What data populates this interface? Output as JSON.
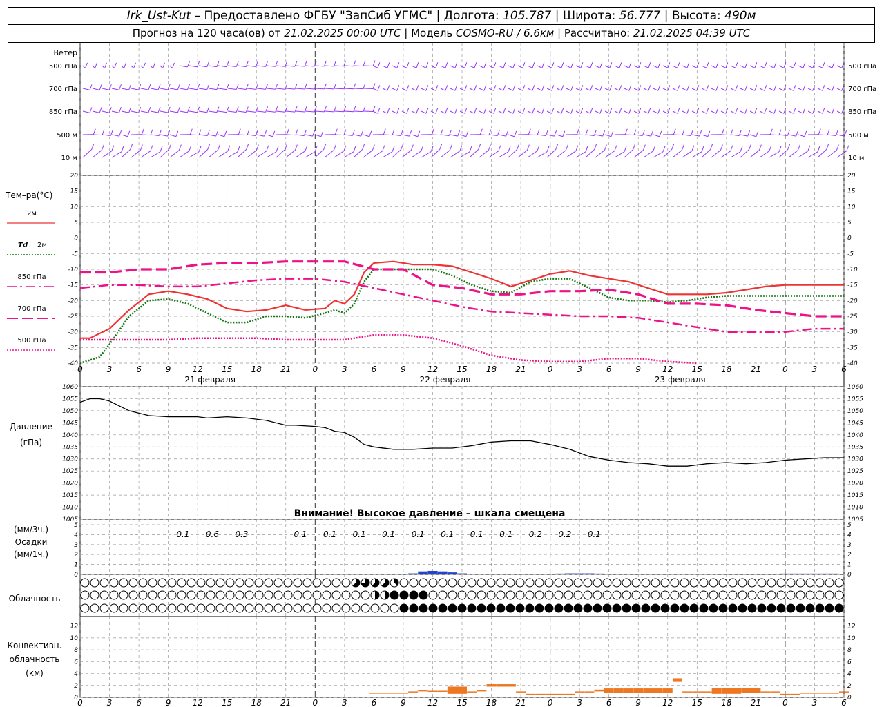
{
  "header": {
    "station": "Irk_Ust-Kut",
    "provider": "– Предоставлено ФГБУ \"ЗапСиб УГМС\"",
    "lon_label": "Долгота:",
    "lon": "105.787",
    "lat_label": "Широта:",
    "lat": "56.777",
    "alt_label": "Высота:",
    "alt": "490м",
    "sep": "|",
    "forecast_label": "Прогноз на 120 часа(ов) от",
    "start": "21.02.2025 00:00 UTC",
    "model_label": "Модель",
    "model": "COSMO-RU / 6.6км",
    "calc_label": "Рассчитано:",
    "calc": "21.02.2025 04:39 UTC"
  },
  "colors": {
    "wind": "#9933ff",
    "t2m": "#ee3333",
    "td2m": "#117711",
    "t_levels": "#ee1188",
    "zero": "#3355ff",
    "precip": "#2244cc",
    "conv": "#ee7722",
    "grid": "#999999"
  },
  "x_ticks": [
    "0",
    "3",
    "6",
    "9",
    "12",
    "15",
    "18",
    "21",
    "0",
    "3",
    "6",
    "9",
    "12",
    "15",
    "18",
    "21",
    "0",
    "3",
    "6",
    "9",
    "12",
    "15",
    "18",
    "21",
    "0",
    "3",
    "6"
  ],
  "days": [
    "21 февраля",
    "22 февраля",
    "23 февраля"
  ],
  "wind_panel": {
    "title": "Ветер",
    "levels": [
      "500 гПа",
      "700 гПа",
      "850 гПа",
      "500 м",
      "10  м"
    ]
  },
  "temp_panel": {
    "title": "Тем–ра(°С)",
    "legend": [
      {
        "label": "2м"
      },
      {
        "label_it": "Td",
        "label": "2м"
      },
      {
        "label": "850 гПа"
      },
      {
        "label": "700 гПа"
      },
      {
        "label": "500 гПа"
      }
    ],
    "y_ticks": [
      "20",
      "15",
      "10",
      "5",
      "0",
      "-5",
      "-10",
      "-15",
      "-20",
      "-25",
      "-30",
      "-35",
      "-40"
    ]
  },
  "pressure_panel": {
    "title": "Давление",
    "unit": "(гПа)",
    "y_ticks": [
      "1060",
      "1055",
      "1050",
      "1045",
      "1040",
      "1035",
      "1030",
      "1025",
      "1020",
      "1015",
      "1010",
      "1005"
    ],
    "warning": "Внимание! Высокое давление – шкала смещена"
  },
  "precip_panel": {
    "unit3": "(мм/3ч.)",
    "title": "Осадки",
    "unit1": "(мм/1ч.)",
    "y_ticks": [
      "5",
      "4",
      "3",
      "2",
      "1",
      "0"
    ],
    "labels": [
      {
        "h": 12,
        "v": "0.1"
      },
      {
        "h": 15,
        "v": "0.6"
      },
      {
        "h": 18,
        "v": "0.3"
      },
      {
        "h": 24,
        "v": "0.1"
      },
      {
        "h": 27,
        "v": "0.1"
      },
      {
        "h": 30,
        "v": "0.1"
      },
      {
        "h": 33,
        "v": "0.1"
      },
      {
        "h": 36,
        "v": "0.1"
      },
      {
        "h": 39,
        "v": "0.1"
      },
      {
        "h": 42,
        "v": "0.1"
      },
      {
        "h": 45,
        "v": "0.1"
      },
      {
        "h": 48,
        "v": "0.2"
      },
      {
        "h": 51,
        "v": "0.2"
      },
      {
        "h": 54,
        "v": "0.1"
      }
    ]
  },
  "cloud_panel": {
    "title": "Облачность"
  },
  "conv_panel": {
    "title1": "Конвективн.",
    "title2": "облачность",
    "unit": "(км)",
    "y_ticks": [
      "12",
      "10",
      "8",
      "6",
      "4",
      "2",
      "0"
    ]
  },
  "chart_data": {
    "type": "line",
    "x_unit": "hours since 21.02.2025 00:00 UTC",
    "x_range": [
      0,
      78
    ],
    "temperature": {
      "ylim": [
        -40,
        20
      ],
      "series": [
        {
          "name": "2м",
          "style": "solid",
          "color": "#ee3333",
          "x": [
            0,
            1,
            3,
            5,
            7,
            9,
            11,
            13,
            15,
            17,
            19,
            21,
            23,
            25,
            26,
            27,
            28,
            29,
            30,
            32,
            34,
            36,
            38,
            40,
            42,
            44,
            46,
            48,
            50,
            52,
            54,
            56,
            58,
            60,
            62,
            64,
            66,
            68,
            70,
            72,
            74,
            76,
            78
          ],
          "y": [
            -32,
            -32,
            -29,
            -23,
            -18,
            -17,
            -18,
            -19.5,
            -22.5,
            -23.5,
            -23,
            -21.5,
            -23,
            -22.5,
            -20,
            -21,
            -18,
            -11,
            -8,
            -7.5,
            -8.5,
            -8.5,
            -9,
            -11,
            -13,
            -15.5,
            -13.5,
            -11.5,
            -10.5,
            -12,
            -13,
            -14,
            -16,
            -18,
            -18,
            -18,
            -17.5,
            -16.5,
            -15.5,
            -15,
            -15,
            -15,
            -15
          ]
        },
        {
          "name": "Td 2м",
          "style": "dotted",
          "color": "#117711",
          "x": [
            0,
            1,
            2,
            3,
            5,
            7,
            9,
            11,
            13,
            15,
            17,
            19,
            21,
            23,
            25,
            26,
            27,
            28,
            29,
            30,
            32,
            34,
            36,
            38,
            40,
            42,
            44,
            46,
            48,
            50,
            52,
            54,
            56,
            58,
            60,
            62,
            64,
            66,
            68,
            70,
            72,
            74,
            76,
            78
          ],
          "y": [
            -40,
            -39,
            -38,
            -34,
            -25,
            -20,
            -19.5,
            -21,
            -24,
            -27,
            -27,
            -25,
            -25,
            -25.5,
            -24,
            -23,
            -24,
            -21,
            -14,
            -10,
            -10,
            -10,
            -10,
            -12,
            -15,
            -17,
            -17.5,
            -14,
            -13,
            -13,
            -16,
            -19,
            -20,
            -20,
            -20.5,
            -20,
            -19,
            -18.5,
            -18.5,
            -18.5,
            -18.5,
            -18.5,
            -18.5,
            -18.5
          ]
        },
        {
          "name": "850 гПа",
          "style": "dashdot",
          "color": "#ee1188",
          "x": [
            0,
            3,
            6,
            9,
            12,
            15,
            18,
            21,
            24,
            27,
            30,
            33,
            36,
            39,
            42,
            45,
            48,
            51,
            54,
            57,
            60,
            63,
            66,
            69,
            72,
            75,
            78
          ],
          "y": [
            -16,
            -15,
            -15,
            -15.5,
            -15.5,
            -14.5,
            -13.5,
            -13,
            -13,
            -14,
            -16,
            -18,
            -20,
            -22,
            -23.5,
            -24,
            -24.5,
            -25,
            -25,
            -25.5,
            -27,
            -28.5,
            -30,
            -30,
            -30,
            -29,
            -29
          ]
        },
        {
          "name": "700 гПа",
          "style": "dashed",
          "color": "#ee1188",
          "x": [
            0,
            3,
            6,
            9,
            12,
            15,
            18,
            21,
            24,
            27,
            30,
            33,
            36,
            39,
            42,
            45,
            48,
            51,
            54,
            57,
            60,
            63,
            66,
            69,
            72,
            75,
            78
          ],
          "y": [
            -11,
            -11,
            -10,
            -10,
            -8.5,
            -8,
            -8,
            -7.5,
            -7.5,
            -7.5,
            -10,
            -10,
            -15,
            -16,
            -18,
            -18,
            -17,
            -17,
            -16.5,
            -18,
            -21,
            -21,
            -21.5,
            -23,
            -24,
            -25,
            -25
          ]
        },
        {
          "name": "500 гПа",
          "style": "dotted",
          "color": "#ee1188",
          "x": [
            0,
            3,
            6,
            9,
            12,
            15,
            18,
            21,
            24,
            27,
            30,
            33,
            36,
            39,
            42,
            45,
            48,
            51,
            54,
            57,
            60,
            63
          ],
          "y": [
            -32.5,
            -32.5,
            -32.5,
            -32.5,
            -32,
            -32,
            -32,
            -32.5,
            -32.5,
            -32.5,
            -31,
            -31,
            -32,
            -34.5,
            -37.5,
            -39,
            -39.5,
            -39.5,
            -38.5,
            -38.5,
            -39.5,
            -40
          ]
        }
      ]
    },
    "pressure": {
      "ylim": [
        1005,
        1060
      ],
      "x": [
        0,
        1,
        2,
        3,
        5,
        7,
        9,
        11,
        12,
        13,
        15,
        17,
        19,
        21,
        22,
        24,
        25,
        26,
        27,
        28,
        29,
        30,
        32,
        34,
        36,
        38,
        40,
        42,
        44,
        46,
        48,
        50,
        52,
        54,
        56,
        58,
        60,
        62,
        64,
        66,
        68,
        70,
        72,
        74,
        76,
        78
      ],
      "y": [
        1053.5,
        1055,
        1055,
        1054,
        1050,
        1048,
        1047.5,
        1047.5,
        1047.5,
        1047,
        1047.5,
        1047,
        1046,
        1044,
        1044,
        1043.5,
        1043,
        1041.5,
        1041,
        1039,
        1036,
        1035,
        1034,
        1034,
        1034.5,
        1034.5,
        1035.5,
        1037,
        1037.5,
        1037.5,
        1036,
        1034,
        1031,
        1029.5,
        1028.5,
        1028,
        1027,
        1027,
        1028,
        1028.5,
        1028,
        1028.5,
        1029.5,
        1030,
        1030.5,
        1030.5
      ]
    },
    "precipitation_1h": {
      "x": [
        33,
        34,
        35,
        36,
        37,
        38,
        39,
        40,
        41,
        42,
        43,
        44,
        45,
        46,
        47,
        48,
        49,
        50,
        51,
        52,
        53,
        54,
        55,
        56,
        57,
        58,
        59,
        60,
        61,
        62,
        63,
        64,
        65,
        66,
        67,
        68,
        69,
        70,
        71,
        72,
        73,
        74,
        75,
        76,
        77
      ],
      "y": [
        0.03,
        0.1,
        0.3,
        0.35,
        0.3,
        0.2,
        0.1,
        0.05,
        0.02,
        0,
        0.02,
        0.03,
        0.02,
        0.02,
        0.03,
        0.05,
        0.08,
        0.1,
        0.1,
        0.1,
        0.08,
        0.05,
        0.05,
        0.05,
        0.05,
        0.05,
        0.05,
        0.05,
        0.05,
        0.06,
        0.06,
        0.05,
        0.05,
        0.05,
        0.06,
        0.06,
        0.06,
        0.07,
        0.07,
        0.08,
        0.08,
        0.08,
        0.08,
        0.08,
        0.08
      ]
    },
    "cloud_rows": [
      {
        "name": "high",
        "oktas": "000000000000000000020000000000000000000000000000000000005666565432000000000000000000000000000000000000000000000000000000000000000000000000000000000000000000000000000000000000000000000000000000000000000000"
      },
      {
        "name": "middle",
        "oktas": "000000000000000000000000000000000000000000000000000000000002464788888888000000000000000000000000000000000000000000000000000000000000000000000000000000000000000000000000000000000000000000000000000000000000"
      },
      {
        "name": "low",
        "oktas": "000000000000000000000000000000000000000000000000000000000000080008888888888888888888888888888888888888888888888888888888888888888888888888888888888888888888888888888888888888888888888888888888888888888888"
      }
    ],
    "convective_cloud_km": {
      "x": [
        30,
        31,
        32,
        33,
        34,
        35,
        36,
        37,
        38,
        39,
        40,
        41,
        42,
        43,
        44,
        45,
        46,
        47,
        48,
        49,
        50,
        51,
        52,
        53,
        54,
        55,
        56,
        57,
        58,
        59,
        60,
        61,
        62,
        63,
        64,
        65,
        66,
        67,
        68,
        69,
        70,
        71,
        72,
        73,
        74,
        75,
        76,
        77,
        78
      ],
      "top": [
        0.8,
        0.8,
        0.8,
        0.8,
        1,
        1.2,
        1.1,
        1.1,
        1.8,
        1.8,
        1,
        1.2,
        2.2,
        2.2,
        2.2,
        1,
        0.6,
        0.6,
        0.6,
        0.6,
        0.6,
        1,
        1,
        1.3,
        1.5,
        1.5,
        1.5,
        1.5,
        1.5,
        1.5,
        1.5,
        3.2,
        1,
        1,
        1,
        1.6,
        1.6,
        1.6,
        1.6,
        1.6,
        1,
        1,
        0.6,
        0.6,
        0.8,
        0.8,
        0.8,
        0.8,
        1
      ],
      "base": [
        0.8,
        0.8,
        0.8,
        0.8,
        1,
        1,
        1,
        1,
        0.6,
        0.6,
        1,
        1,
        1.8,
        1.8,
        1.8,
        1,
        0.6,
        0.6,
        0.6,
        0.6,
        0.6,
        1,
        1,
        1,
        0.8,
        0.8,
        0.8,
        0.8,
        0.8,
        0.8,
        0.8,
        2.6,
        1,
        1,
        1,
        0.6,
        0.6,
        0.6,
        0.8,
        0.8,
        1,
        1,
        0.6,
        0.6,
        0.8,
        0.8,
        0.8,
        0.8,
        1
      ]
    }
  }
}
